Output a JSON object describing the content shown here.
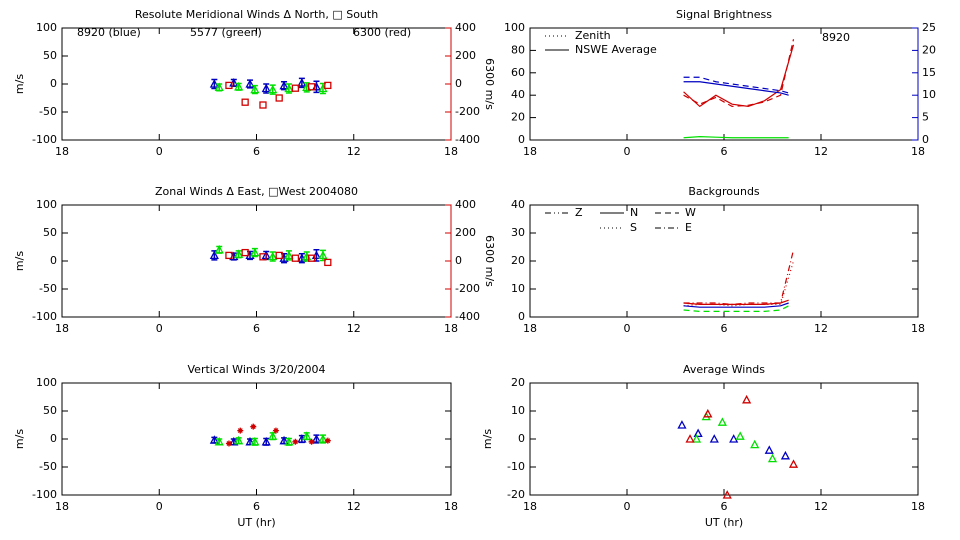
{
  "chart_data": [
    {
      "type": "scatter",
      "title": "Resolute Meridional Winds Δ North, □ South",
      "ylabel": "m/s",
      "xlim": [
        -6,
        18
      ],
      "xticks": [
        {
          "value": -6,
          "label": "18"
        },
        0,
        6,
        12,
        18
      ],
      "ylim": [
        -100,
        100
      ],
      "yticks": [
        -100,
        -50,
        0,
        50,
        100
      ],
      "y2lim": [
        -400,
        400
      ],
      "y2ticks": [
        -400,
        -200,
        0,
        200,
        400
      ],
      "y2label": "6300 m/s",
      "y2color": "#d00000",
      "annotations": [
        {
          "text": "8920 (blue)",
          "color": "#0000c0"
        },
        {
          "text": "5577 (green)",
          "color": "#00e000"
        },
        {
          "text": "6300 (red)",
          "color": "#d00000"
        }
      ],
      "series": [
        {
          "color": "#0000c0",
          "marker": "triangle",
          "x": [
            3.4,
            4.6,
            5.6,
            6.6,
            7.7,
            8.8,
            9.7
          ],
          "values": [
            0,
            2,
            0,
            -8,
            -3,
            2,
            -5
          ],
          "errors": [
            8,
            6,
            7,
            8,
            7,
            8,
            10
          ]
        },
        {
          "color": "#00e000",
          "marker": "triangle",
          "x": [
            3.7,
            4.9,
            5.9,
            7.0,
            8.0,
            9.1,
            10.1
          ],
          "values": [
            -6,
            -5,
            -10,
            -10,
            -8,
            -6,
            -8
          ],
          "errors": [
            6,
            6,
            7,
            8,
            8,
            8,
            9
          ]
        },
        {
          "color": "#d00000",
          "marker": "square",
          "axis": "y2",
          "x": [
            4.3,
            5.3,
            6.4,
            7.4,
            8.4,
            9.4,
            10.4
          ],
          "values": [
            -10,
            -130,
            -150,
            -100,
            -30,
            -20,
            -10
          ]
        }
      ]
    },
    {
      "type": "scatter",
      "title": "Zonal Winds Δ East, □West 2004080",
      "ylabel": "m/s",
      "xlim": [
        -6,
        18
      ],
      "xticks": [
        {
          "value": -6,
          "label": "18"
        },
        0,
        6,
        12,
        18
      ],
      "ylim": [
        -100,
        100
      ],
      "yticks": [
        -100,
        -50,
        0,
        50,
        100
      ],
      "y2lim": [
        -400,
        400
      ],
      "y2ticks": [
        -400,
        -200,
        0,
        200,
        400
      ],
      "y2label": "6300 m/s",
      "y2color": "#d00000",
      "series": [
        {
          "color": "#0000c0",
          "marker": "triangle",
          "x": [
            3.4,
            4.6,
            5.6,
            6.6,
            7.7,
            8.8,
            9.7
          ],
          "values": [
            10,
            8,
            10,
            10,
            5,
            5,
            10
          ],
          "errors": [
            8,
            6,
            7,
            7,
            8,
            8,
            10
          ]
        },
        {
          "color": "#00e000",
          "marker": "triangle",
          "x": [
            3.7,
            4.9,
            5.9,
            7.0,
            8.0,
            9.1,
            10.1
          ],
          "values": [
            20,
            12,
            15,
            8,
            10,
            8,
            10
          ],
          "errors": [
            6,
            6,
            7,
            8,
            8,
            8,
            9
          ]
        },
        {
          "color": "#d00000",
          "marker": "square",
          "axis": "y2",
          "x": [
            4.3,
            5.3,
            6.4,
            7.4,
            8.4,
            9.4,
            10.4
          ],
          "values": [
            40,
            60,
            30,
            40,
            20,
            20,
            -10
          ]
        }
      ]
    },
    {
      "type": "scatter",
      "title": "Vertical Winds 3/20/2004",
      "ylabel": "m/s",
      "xlabel": "UT (hr)",
      "xlim": [
        -6,
        18
      ],
      "xticks": [
        {
          "value": -6,
          "label": "18"
        },
        0,
        6,
        12,
        18
      ],
      "ylim": [
        -100,
        100
      ],
      "yticks": [
        -100,
        -50,
        0,
        50,
        100
      ],
      "series": [
        {
          "color": "#0000c0",
          "marker": "triangle",
          "x": [
            3.4,
            4.6,
            5.6,
            6.6,
            7.7,
            8.8,
            9.7
          ],
          "values": [
            -2,
            -5,
            -5,
            -5,
            -3,
            0,
            0
          ],
          "errors": [
            5,
            5,
            5,
            6,
            5,
            6,
            7
          ]
        },
        {
          "color": "#00e000",
          "marker": "triangle",
          "x": [
            3.7,
            4.9,
            5.9,
            7.0,
            8.0,
            9.1,
            10.1
          ],
          "values": [
            -5,
            -3,
            -5,
            5,
            -5,
            5,
            0
          ],
          "errors": [
            5,
            5,
            6,
            6,
            6,
            6,
            7
          ]
        },
        {
          "color": "#d00000",
          "marker": "star",
          "x": [
            4.3,
            5.0,
            5.8,
            7.2,
            8.4,
            9.4,
            10.4
          ],
          "values": [
            -8,
            15,
            22,
            15,
            -5,
            -5,
            -3
          ]
        }
      ]
    },
    {
      "type": "line",
      "title": "Signal Brightness",
      "xlim": [
        -6,
        18
      ],
      "xticks": [
        {
          "value": -6,
          "label": "18"
        },
        0,
        6,
        12,
        18
      ],
      "ylim": [
        0,
        100
      ],
      "yticks": [
        0,
        20,
        40,
        60,
        80,
        100
      ],
      "y2lim": [
        0,
        25
      ],
      "y2ticks": [
        0,
        5,
        10,
        15,
        20,
        25
      ],
      "y2color": "#0000c0",
      "annotations": [
        {
          "text": "8920",
          "color": "#0000c0"
        }
      ],
      "legend": [
        {
          "label": "Zenith",
          "style": "dotted"
        },
        {
          "label": "NSWE Average",
          "style": "solid"
        }
      ],
      "series": [
        {
          "color": "#d00000",
          "style": "solid",
          "x": [
            3.5,
            4.5,
            5.5,
            6.5,
            7.5,
            8.5,
            9.5,
            10.3
          ],
          "values": [
            43,
            30,
            40,
            32,
            30,
            35,
            45,
            85
          ]
        },
        {
          "color": "#d00000",
          "style": "dashed",
          "x": [
            3.5,
            4.5,
            5.5,
            6.5,
            7.5,
            8.5,
            9.5,
            10.3
          ],
          "values": [
            40,
            32,
            38,
            30,
            31,
            34,
            40,
            90
          ]
        },
        {
          "color": "#0000c0",
          "style": "solid",
          "axis": "y2",
          "x": [
            3.5,
            4.5,
            5.5,
            6.5,
            7.5,
            8.5,
            9.5,
            10.0
          ],
          "values": [
            13,
            13,
            12.5,
            12,
            11.5,
            11,
            10.5,
            10
          ]
        },
        {
          "color": "#0000c0",
          "style": "dashed",
          "axis": "y2",
          "x": [
            3.5,
            4.5,
            5.5,
            6.5,
            7.5,
            8.5,
            9.5,
            10.0
          ],
          "values": [
            14,
            14,
            13,
            12.5,
            12,
            11.5,
            11,
            10.5
          ]
        },
        {
          "color": "#00e000",
          "style": "solid",
          "x": [
            3.5,
            4.5,
            5.5,
            6.5,
            7.5,
            8.5,
            9.5,
            10.0
          ],
          "values": [
            2,
            3,
            2.5,
            2,
            2,
            2,
            2,
            2
          ]
        }
      ]
    },
    {
      "type": "line",
      "title": "Backgrounds",
      "xlim": [
        -6,
        18
      ],
      "xticks": [
        {
          "value": -6,
          "label": "18"
        },
        0,
        6,
        12,
        18
      ],
      "ylim": [
        0,
        40
      ],
      "yticks": [
        0,
        10,
        20,
        30,
        40
      ],
      "legend": [
        {
          "label": "Z",
          "style": "dashdotdot"
        },
        {
          "label": "N",
          "style": "solid"
        },
        {
          "label": "W",
          "style": "dashed"
        },
        {
          "label": "S",
          "style": "dotted"
        },
        {
          "label": "E",
          "style": "dashdot"
        }
      ],
      "series": [
        {
          "color": "#d00000",
          "style": "dashdot",
          "x": [
            3.5,
            4.5,
            5.5,
            6.5,
            7.5,
            8.5,
            9.5,
            10.3
          ],
          "values": [
            5,
            5,
            5,
            4.5,
            5,
            5,
            5,
            24
          ]
        },
        {
          "color": "#d00000",
          "style": "dotted",
          "x": [
            3.5,
            4.5,
            5.5,
            6.5,
            7.5,
            8.5,
            9.5,
            10.3
          ],
          "values": [
            4,
            4.5,
            4.5,
            4,
            4.5,
            4.5,
            4.5,
            20
          ]
        },
        {
          "color": "#d00000",
          "style": "solid",
          "x": [
            3.5,
            4.5,
            5.5,
            6.5,
            7.5,
            8.5,
            9.5,
            10.0
          ],
          "values": [
            5,
            4.5,
            4.5,
            4.5,
            4.5,
            4.5,
            5,
            6
          ]
        },
        {
          "color": "#0000c0",
          "style": "solid",
          "x": [
            3.5,
            4.5,
            5.5,
            6.5,
            7.5,
            8.5,
            9.5,
            10.0
          ],
          "values": [
            4,
            3.5,
            3.5,
            3.5,
            3.5,
            3.5,
            4,
            5
          ]
        },
        {
          "color": "#00e000",
          "style": "dashed",
          "x": [
            3.5,
            4.5,
            5.5,
            6.5,
            7.5,
            8.5,
            9.5,
            10.0
          ],
          "values": [
            2.5,
            2,
            2,
            2,
            2,
            2,
            2.5,
            4
          ]
        }
      ]
    },
    {
      "type": "scatter",
      "title": "Average Winds",
      "ylabel": "m/s",
      "xlabel": "UT (hr)",
      "xlim": [
        -6,
        18
      ],
      "xticks": [
        {
          "value": -6,
          "label": "18"
        },
        0,
        6,
        12,
        18
      ],
      "ylim": [
        -20,
        20
      ],
      "yticks": [
        -20,
        -10,
        0,
        10,
        20
      ],
      "series": [
        {
          "color": "#0000c0",
          "marker": "triangle",
          "x": [
            3.4,
            4.4,
            5.4,
            6.6,
            8.8,
            9.8
          ],
          "values": [
            5,
            2,
            0,
            0,
            -4,
            -6
          ]
        },
        {
          "color": "#00e000",
          "marker": "triangle",
          "x": [
            4.3,
            4.9,
            5.9,
            7.0,
            7.9,
            9.0
          ],
          "values": [
            0,
            8,
            6,
            1,
            -2,
            -7
          ]
        },
        {
          "color": "#d00000",
          "marker": "triangle",
          "x": [
            3.9,
            5.0,
            6.2,
            7.4,
            10.3
          ],
          "values": [
            0,
            9,
            -20,
            14,
            -9
          ]
        }
      ]
    }
  ]
}
